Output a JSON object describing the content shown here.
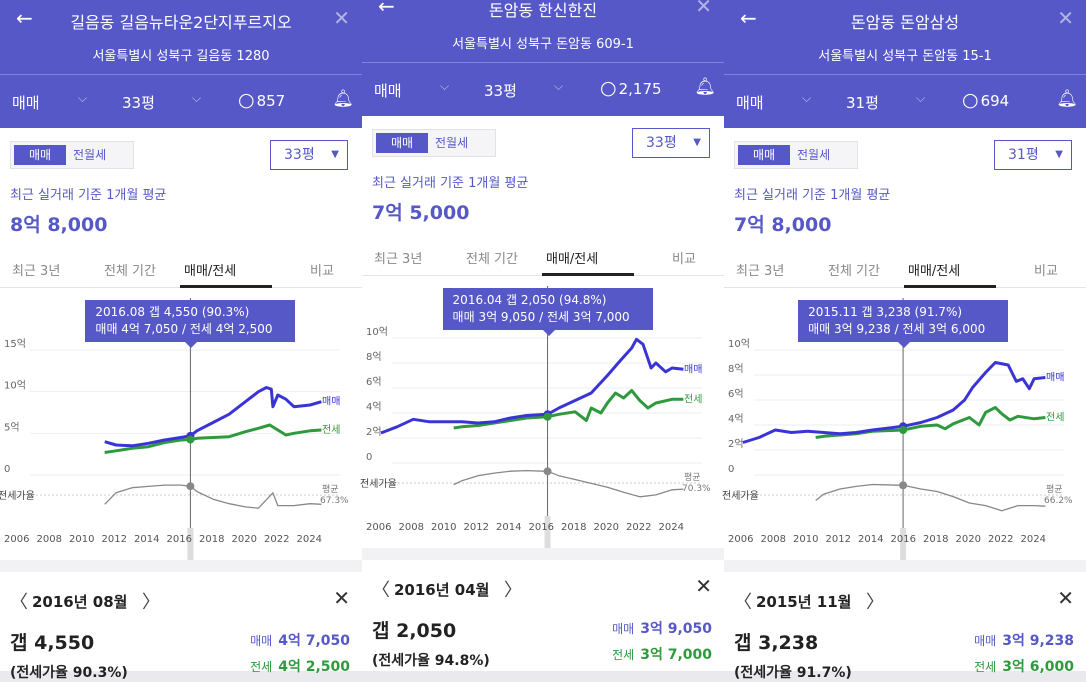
{
  "panels": [
    {
      "title": "길음동 길음뉴타운2단지푸르지오",
      "address": "서울특별시 성북구 길음동 1280",
      "trade_type": "매매",
      "size": "33평",
      "comments": "857",
      "seg_on": "매매",
      "seg_off": "전월세",
      "size_select": "33평",
      "avg_label": "최근 실거래 기준 1개월 평균",
      "avg_value": "8억 8,000",
      "tabs": [
        "최근 3년",
        "전체 기간",
        "매매/전세",
        "비교"
      ],
      "tooltip_line1": "2016.08  갭 4,550 (90.3%)",
      "tooltip_line2": "매매 4억 7,050 / 전세 4억 2,500",
      "y_ticks": [
        "15억",
        "10억",
        "5억",
        "0"
      ],
      "y_ticks_v": [
        15,
        10,
        5,
        0
      ],
      "ymax": 15,
      "legend_sale": "매매",
      "legend_jeonse": "전세",
      "ratio_label": "전세가율",
      "avg_ratio_label": "평균",
      "avg_ratio": "67.3%",
      "x_ticks": [
        "2006",
        "2008",
        "2010",
        "2012",
        "2014",
        "2016",
        "2018",
        "2020",
        "2022",
        "2024"
      ],
      "sel_x": 2016.6,
      "sale_series": [
        [
          2011.3,
          4.0
        ],
        [
          2012,
          3.6
        ],
        [
          2013,
          3.5
        ],
        [
          2014,
          3.8
        ],
        [
          2015,
          4.2
        ],
        [
          2016,
          4.5
        ],
        [
          2016.6,
          4.7
        ],
        [
          2017,
          5.3
        ],
        [
          2018,
          6.3
        ],
        [
          2019,
          7.3
        ],
        [
          2020,
          8.8
        ],
        [
          2020.8,
          10.0
        ],
        [
          2021.3,
          10.5
        ],
        [
          2021.6,
          10.3
        ],
        [
          2021.7,
          8.2
        ],
        [
          2022,
          9.6
        ],
        [
          2022.5,
          9.1
        ],
        [
          2023,
          8.2
        ],
        [
          2024,
          8.4
        ],
        [
          2024.7,
          8.8
        ]
      ],
      "jeonse_series": [
        [
          2011.3,
          2.7
        ],
        [
          2012,
          2.9
        ],
        [
          2013,
          3.2
        ],
        [
          2014,
          3.4
        ],
        [
          2015,
          3.9
        ],
        [
          2016,
          4.2
        ],
        [
          2016.6,
          4.25
        ],
        [
          2017,
          4.4
        ],
        [
          2018,
          4.5
        ],
        [
          2019,
          4.6
        ],
        [
          2020,
          5.2
        ],
        [
          2020.8,
          5.6
        ],
        [
          2021.5,
          6.0
        ],
        [
          2022,
          5.4
        ],
        [
          2022.5,
          4.8
        ],
        [
          2023,
          5.0
        ],
        [
          2024,
          5.3
        ],
        [
          2024.7,
          5.4
        ]
      ],
      "ratio_series": [
        [
          2011.3,
          0.62
        ],
        [
          2012,
          0.8
        ],
        [
          2013,
          0.88
        ],
        [
          2014,
          0.9
        ],
        [
          2015,
          0.92
        ],
        [
          2016,
          0.92
        ],
        [
          2016.6,
          0.903
        ],
        [
          2017,
          0.82
        ],
        [
          2018,
          0.7
        ],
        [
          2019,
          0.63
        ],
        [
          2020,
          0.58
        ],
        [
          2020.8,
          0.56
        ],
        [
          2021.7,
          0.8
        ],
        [
          2022,
          0.6
        ],
        [
          2023,
          0.6
        ],
        [
          2024,
          0.63
        ],
        [
          2024.7,
          0.62
        ]
      ],
      "month_label": "2016년 08월",
      "gap": "갭 4,550",
      "ratio": "(전세가율 90.3%)",
      "sale_label": "매매",
      "sale_value": "4억 7,050",
      "jeonse_label": "전세",
      "jeonse_value": "4억 2,500"
    },
    {
      "title": "돈암동 한신한진",
      "address": "서울특별시 성북구 돈암동 609-1",
      "trade_type": "매매",
      "size": "33평",
      "comments": "2,175",
      "seg_on": "매매",
      "seg_off": "전월세",
      "size_select": "33평",
      "avg_label": "최근 실거래 기준 1개월 평균",
      "avg_value": "7억 5,000",
      "tabs": [
        "최근 3년",
        "전체 기간",
        "매매/전세",
        "비교"
      ],
      "tooltip_line1": "2016.04  갭 2,050 (94.8%)",
      "tooltip_line2": "매매 3억 9,050 / 전세 3억 7,000",
      "y_ticks": [
        "10억",
        "8억",
        "6억",
        "4억",
        "2억",
        "0"
      ],
      "y_ticks_v": [
        10,
        8,
        6,
        4,
        2,
        0
      ],
      "ymax": 10,
      "legend_sale": "매매",
      "legend_jeonse": "전세",
      "ratio_label": "전세가율",
      "avg_ratio_label": "평균",
      "avg_ratio": "70.3%",
      "x_ticks": [
        "2006",
        "2008",
        "2010",
        "2012",
        "2014",
        "2016",
        "2018",
        "2020",
        "2022",
        "2024"
      ],
      "sel_x": 2016.3,
      "sale_series": [
        [
          2006,
          2.4
        ],
        [
          2007,
          2.9
        ],
        [
          2008,
          3.5
        ],
        [
          2009,
          3.3
        ],
        [
          2010,
          3.3
        ],
        [
          2011,
          3.3
        ],
        [
          2012,
          3.2
        ],
        [
          2013,
          3.3
        ],
        [
          2014,
          3.6
        ],
        [
          2015,
          3.8
        ],
        [
          2016.3,
          3.9
        ],
        [
          2017,
          4.4
        ],
        [
          2018,
          5.0
        ],
        [
          2019,
          5.6
        ],
        [
          2020,
          7.0
        ],
        [
          2020.8,
          8.2
        ],
        [
          2021.5,
          9.2
        ],
        [
          2021.8,
          9.9
        ],
        [
          2022.2,
          9.5
        ],
        [
          2022.7,
          7.6
        ],
        [
          2023,
          8.0
        ],
        [
          2023.6,
          7.3
        ],
        [
          2024,
          7.6
        ],
        [
          2024.7,
          7.5
        ]
      ],
      "jeonse_series": [
        [
          2010.5,
          2.8
        ],
        [
          2011,
          2.9
        ],
        [
          2012,
          3.0
        ],
        [
          2013,
          3.2
        ],
        [
          2014,
          3.4
        ],
        [
          2015,
          3.6
        ],
        [
          2016.3,
          3.7
        ],
        [
          2017,
          3.9
        ],
        [
          2018,
          4.1
        ],
        [
          2018.7,
          3.4
        ],
        [
          2019,
          4.4
        ],
        [
          2019.6,
          4.0
        ],
        [
          2020,
          4.8
        ],
        [
          2020.5,
          5.6
        ],
        [
          2021,
          5.2
        ],
        [
          2021.5,
          5.8
        ],
        [
          2022,
          5.0
        ],
        [
          2022.5,
          4.4
        ],
        [
          2023,
          4.8
        ],
        [
          2024,
          5.1
        ],
        [
          2024.7,
          5.1
        ]
      ],
      "ratio_series": [
        [
          2010.5,
          0.74
        ],
        [
          2011,
          0.8
        ],
        [
          2012,
          0.88
        ],
        [
          2013,
          0.92
        ],
        [
          2014,
          0.95
        ],
        [
          2015,
          0.96
        ],
        [
          2016.3,
          0.948
        ],
        [
          2017,
          0.88
        ],
        [
          2018,
          0.82
        ],
        [
          2019,
          0.76
        ],
        [
          2020,
          0.7
        ],
        [
          2021,
          0.62
        ],
        [
          2022,
          0.55
        ],
        [
          2023,
          0.58
        ],
        [
          2024,
          0.66
        ],
        [
          2024.7,
          0.67
        ]
      ],
      "month_label": "2016년 04월",
      "gap": "갭 2,050",
      "ratio": "(전세가율 94.8%)",
      "sale_label": "매매",
      "sale_value": "3억 9,050",
      "jeonse_label": "전세",
      "jeonse_value": "3억 7,000"
    },
    {
      "title": "돈암동 돈암삼성",
      "address": "서울특별시 성북구 돈암동 15-1",
      "trade_type": "매매",
      "size": "31평",
      "comments": "694",
      "seg_on": "매매",
      "seg_off": "전월세",
      "size_select": "31평",
      "avg_label": "최근 실거래 기준 1개월 평균",
      "avg_value": "7억 8,000",
      "tabs": [
        "최근 3년",
        "전체 기간",
        "매매/전세",
        "비교"
      ],
      "tooltip_line1": "2015.11  갭 3,238 (91.7%)",
      "tooltip_line2": "매매 3억 9,238 / 전세 3억 6,000",
      "y_ticks": [
        "10억",
        "8억",
        "6억",
        "4억",
        "2억",
        "0"
      ],
      "y_ticks_v": [
        10,
        8,
        6,
        4,
        2,
        0
      ],
      "ymax": 10,
      "legend_sale": "매매",
      "legend_jeonse": "전세",
      "ratio_label": "전세가율",
      "avg_ratio_label": "평균",
      "avg_ratio": "66.2%",
      "x_ticks": [
        "2006",
        "2008",
        "2010",
        "2012",
        "2014",
        "2016",
        "2018",
        "2020",
        "2022",
        "2024"
      ],
      "sel_x": 2015.9,
      "sale_series": [
        [
          2006,
          2.6
        ],
        [
          2007,
          3.0
        ],
        [
          2008,
          3.6
        ],
        [
          2009,
          3.4
        ],
        [
          2010,
          3.5
        ],
        [
          2011,
          3.4
        ],
        [
          2012,
          3.3
        ],
        [
          2013,
          3.4
        ],
        [
          2014,
          3.6
        ],
        [
          2015.9,
          3.9
        ],
        [
          2017,
          4.2
        ],
        [
          2018,
          4.6
        ],
        [
          2019,
          5.2
        ],
        [
          2019.7,
          6.0
        ],
        [
          2020.2,
          7.0
        ],
        [
          2021,
          8.2
        ],
        [
          2021.6,
          9.0
        ],
        [
          2022.4,
          8.8
        ],
        [
          2022.9,
          7.5
        ],
        [
          2023.3,
          7.7
        ],
        [
          2023.7,
          6.9
        ],
        [
          2024,
          7.7
        ],
        [
          2024.7,
          7.8
        ]
      ],
      "jeonse_series": [
        [
          2010.5,
          3.0
        ],
        [
          2011,
          3.1
        ],
        [
          2012,
          3.2
        ],
        [
          2013,
          3.3
        ],
        [
          2014,
          3.5
        ],
        [
          2015.9,
          3.6
        ],
        [
          2017,
          3.9
        ],
        [
          2018,
          4.0
        ],
        [
          2018.5,
          3.7
        ],
        [
          2019,
          4.1
        ],
        [
          2020,
          4.6
        ],
        [
          2020.6,
          4.0
        ],
        [
          2021,
          5.0
        ],
        [
          2021.6,
          5.4
        ],
        [
          2022,
          4.9
        ],
        [
          2022.5,
          4.4
        ],
        [
          2023,
          4.7
        ],
        [
          2024,
          4.5
        ],
        [
          2024.7,
          4.6
        ]
      ],
      "ratio_series": [
        [
          2010.5,
          0.68
        ],
        [
          2011,
          0.78
        ],
        [
          2012,
          0.86
        ],
        [
          2013,
          0.9
        ],
        [
          2014,
          0.93
        ],
        [
          2015.9,
          0.917
        ],
        [
          2017,
          0.86
        ],
        [
          2018,
          0.82
        ],
        [
          2019,
          0.74
        ],
        [
          2020,
          0.64
        ],
        [
          2021,
          0.6
        ],
        [
          2022,
          0.52
        ],
        [
          2023,
          0.6
        ],
        [
          2024,
          0.6
        ],
        [
          2024.7,
          0.59
        ]
      ],
      "month_label": "2015년 11월",
      "gap": "갭 3,238",
      "ratio": "(전세가율 91.7%)",
      "sale_label": "매매",
      "sale_value": "3억 9,238",
      "jeonse_label": "전세",
      "jeonse_value": "3억 6,000"
    }
  ],
  "colors": {
    "accent": "#5658c8",
    "sale": "#3a34d6",
    "jeonse": "#2e9a3d",
    "ratio": "#888888"
  }
}
